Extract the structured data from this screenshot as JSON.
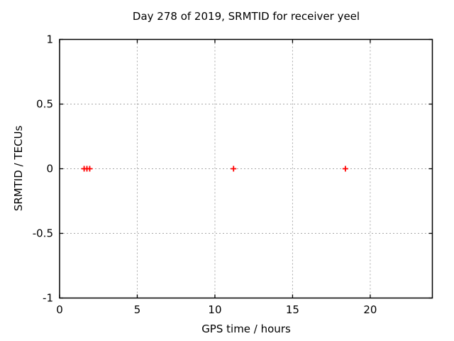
{
  "chart_data": {
    "type": "scatter",
    "title": "Day 278 of 2019, SRMTID for receiver yeel",
    "xlabel": "GPS time / hours",
    "ylabel": "SRMTID / TECUs",
    "xlim": [
      0,
      24
    ],
    "ylim": [
      -1,
      1
    ],
    "xticks": {
      "values": [
        0,
        5,
        10,
        15,
        20
      ],
      "labels": [
        "0",
        "5",
        "10",
        "15",
        "20"
      ]
    },
    "yticks": {
      "values": [
        1,
        0.5,
        0,
        -0.5,
        -1
      ],
      "labels": [
        "1",
        "0.5",
        "0",
        "-0.5",
        "-1"
      ]
    },
    "grid": true,
    "legend": "none",
    "colors": {
      "background": "#ffffff",
      "border": "#000000",
      "grid": "#a8a8a8",
      "text": "#000000",
      "marker": "#ff0000"
    },
    "series": [
      {
        "name": "SRMTID",
        "marker": "plus",
        "color": "#ff0000",
        "x": [
          1.58,
          1.76,
          1.94,
          11.2,
          18.4
        ],
        "y": [
          0,
          0,
          0,
          0,
          0
        ]
      }
    ]
  }
}
